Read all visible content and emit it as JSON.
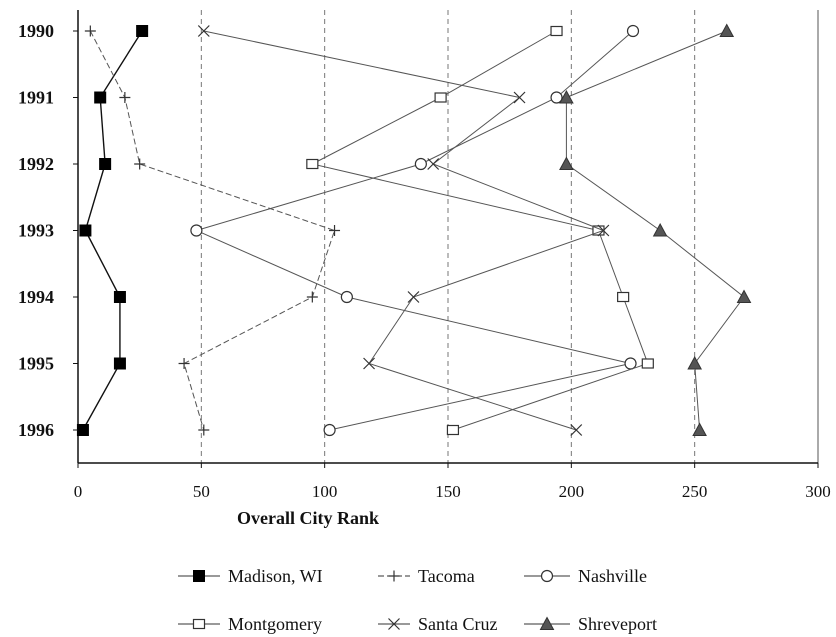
{
  "chart_data": {
    "type": "line",
    "orientation": "horizontal",
    "xlabel": "Overall City Rank",
    "xlim": [
      0,
      300
    ],
    "x_ticks": [
      0,
      50,
      100,
      150,
      200,
      250,
      300
    ],
    "x_tick_labels": [
      "0",
      "50",
      "100",
      "150",
      "200",
      "250",
      "300"
    ],
    "categories": [
      "1990",
      "1991",
      "1992",
      "1993",
      "1994",
      "1995",
      "1996"
    ],
    "grid": "vertical dashed lines at 50, 100, 150, 200, 250",
    "legend_position": "bottom",
    "series": [
      {
        "name": "Madison, WI",
        "marker": "filled-square",
        "line": "solid",
        "values": [
          26,
          9,
          11,
          3,
          17,
          17,
          2
        ]
      },
      {
        "name": "Tacoma",
        "marker": "plus",
        "line": "dashed",
        "values": [
          5,
          19,
          25,
          104,
          95,
          43,
          51
        ]
      },
      {
        "name": "Nashville",
        "marker": "open-circle",
        "line": "solid",
        "values": [
          225,
          194,
          139,
          48,
          109,
          224,
          102
        ]
      },
      {
        "name": "Montgomery",
        "marker": "open-square",
        "line": "solid",
        "values": [
          194,
          147,
          95,
          211,
          221,
          231,
          152
        ]
      },
      {
        "name": "Santa Cruz",
        "marker": "x",
        "line": "solid",
        "values": [
          51,
          179,
          144,
          213,
          136,
          118,
          202
        ]
      },
      {
        "name": "Shreveport",
        "marker": "filled-triangle",
        "line": "solid",
        "values": [
          263,
          198,
          198,
          236,
          270,
          250,
          252
        ]
      }
    ]
  }
}
